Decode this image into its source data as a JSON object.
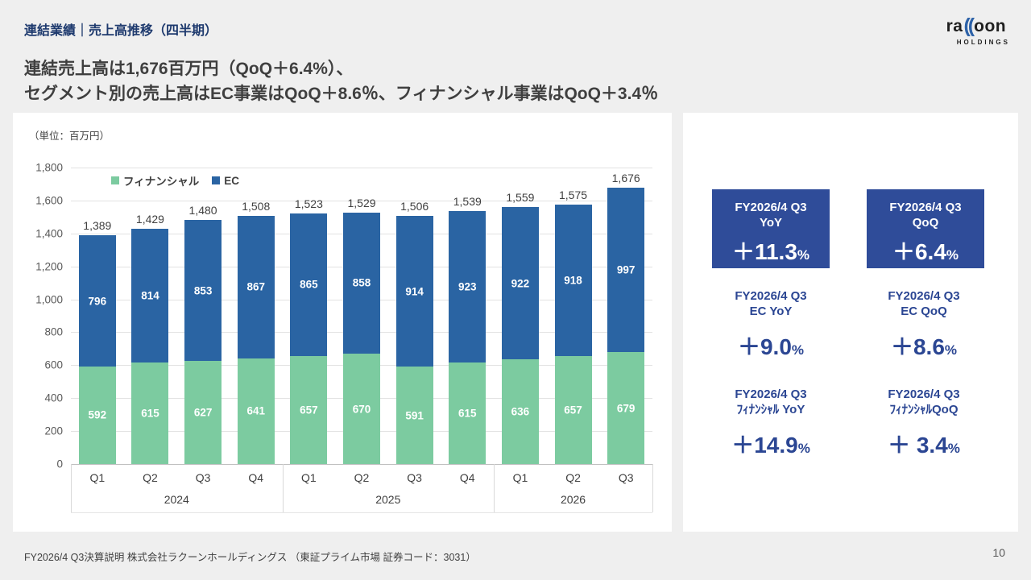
{
  "header": {
    "title": "連結業績｜売上高推移（四半期）",
    "subtitle_line1": "連結売上高は1,676百万円（QoQ＋6.4%）、",
    "subtitle_line2": "セグメント別の売上高はEC事業はQoQ＋8.6％、フィナンシャル事業はQoQ＋3.4％",
    "logo": {
      "text1": "ra",
      "arcs": "((",
      "text2": "oon",
      "sub": "HOLDINGS"
    }
  },
  "chart_data": {
    "type": "bar",
    "stacked": true,
    "unit_label": "（単位：百万円）",
    "ylim": [
      0,
      1800
    ],
    "ytick_step": 200,
    "grid": true,
    "legend_position": "top-left-inside",
    "categories": [
      "Q1",
      "Q2",
      "Q3",
      "Q4",
      "Q1",
      "Q2",
      "Q3",
      "Q4",
      "Q1",
      "Q2",
      "Q3"
    ],
    "year_groups": [
      {
        "label": "2024",
        "count": 4
      },
      {
        "label": "2025",
        "count": 4
      },
      {
        "label": "2026",
        "count": 3
      }
    ],
    "series": [
      {
        "name": "フィナンシャル",
        "color": "#7ccba0",
        "values": [
          592,
          615,
          627,
          641,
          657,
          670,
          591,
          615,
          636,
          657,
          679
        ]
      },
      {
        "name": "EC",
        "color": "#2a64a3",
        "values": [
          796,
          814,
          853,
          867,
          865,
          858,
          914,
          923,
          922,
          918,
          997
        ]
      }
    ],
    "totals": [
      1389,
      1429,
      1480,
      1508,
      1523,
      1529,
      1506,
      1539,
      1559,
      1575,
      1676
    ]
  },
  "kpi": {
    "boxes": [
      {
        "label_line1": "FY2026/4 Q3",
        "label_line2": "YoY",
        "value": "＋11.3",
        "unit": "%"
      },
      {
        "label_line1": "FY2026/4 Q3",
        "label_line2": "QoQ",
        "value": "＋6.4",
        "unit": "%"
      }
    ],
    "stats": [
      {
        "label_line1": "FY2026/4 Q3",
        "label_line2": "EC YoY",
        "value": "＋9.0",
        "unit": "%"
      },
      {
        "label_line1": "FY2026/4 Q3",
        "label_line2": "EC QoQ",
        "value": "＋8.6",
        "unit": "%"
      },
      {
        "label_line1": "FY2026/4 Q3",
        "label_line2": "ﾌｨﾅﾝｼｬﾙ YoY",
        "value": "＋14.9",
        "unit": "%"
      },
      {
        "label_line1": "FY2026/4 Q3",
        "label_line2": "ﾌｨﾅﾝｼｬﾙQoQ",
        "value": "＋ 3.4",
        "unit": "%"
      }
    ]
  },
  "footer": {
    "text": "FY2026/4 Q3決算説明 株式会社ラクーンホールディングス （東証プライム市場 証券コード：3031）",
    "page": "10"
  },
  "colors": {
    "background": "#efefef",
    "card": "#ffffff",
    "title_navy": "#1e3a6e",
    "ec_blue": "#2a64a3",
    "financial_green": "#7ccba0",
    "kpi_box_blue": "#2f4c99",
    "kpi_text_blue": "#2b4693",
    "body_gray": "#3f3f3f"
  }
}
